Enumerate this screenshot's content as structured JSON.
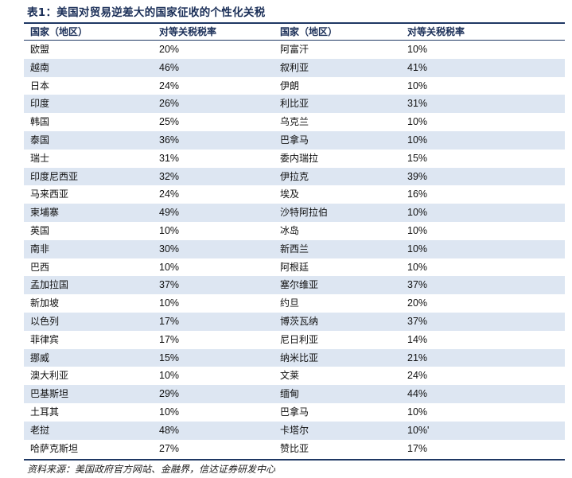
{
  "title": "表1：美国对贸易逆差大的国家征收的个性化关税",
  "headers": [
    "国家（地区）",
    "对等关税税率",
    "国家（地区）",
    "对等关税税率"
  ],
  "rows": [
    [
      "欧盟",
      "20%",
      "阿富汗",
      "10%"
    ],
    [
      "越南",
      "46%",
      "叙利亚",
      "41%"
    ],
    [
      "日本",
      "24%",
      "伊朗",
      "10%"
    ],
    [
      "印度",
      "26%",
      "利比亚",
      "31%"
    ],
    [
      "韩国",
      "25%",
      "乌克兰",
      "10%"
    ],
    [
      "泰国",
      "36%",
      "巴拿马",
      "10%"
    ],
    [
      "瑞士",
      "31%",
      "委内瑞拉",
      "15%"
    ],
    [
      "印度尼西亚",
      "32%",
      "伊拉克",
      "39%"
    ],
    [
      "马来西亚",
      "24%",
      "埃及",
      "16%"
    ],
    [
      "柬埔寨",
      "49%",
      "沙特阿拉伯",
      "10%"
    ],
    [
      "英国",
      "10%",
      "冰岛",
      "10%"
    ],
    [
      "南非",
      "30%",
      "新西兰",
      "10%"
    ],
    [
      "巴西",
      "10%",
      "阿根廷",
      "10%"
    ],
    [
      "孟加拉国",
      "37%",
      "塞尔维亚",
      "37%"
    ],
    [
      "新加坡",
      "10%",
      "约旦",
      "20%"
    ],
    [
      "以色列",
      "17%",
      "博茨瓦纳",
      "37%"
    ],
    [
      "菲律宾",
      "17%",
      "尼日利亚",
      "14%"
    ],
    [
      "挪威",
      "15%",
      "纳米比亚",
      "21%"
    ],
    [
      "澳大利亚",
      "10%",
      "文莱",
      "24%"
    ],
    [
      "巴基斯坦",
      "29%",
      "缅甸",
      "44%"
    ],
    [
      "土耳其",
      "10%",
      "巴拿马",
      "10%"
    ],
    [
      "老挝",
      "48%",
      "卡塔尔",
      "10%'"
    ],
    [
      "哈萨克斯坦",
      "27%",
      "赞比亚",
      "17%"
    ]
  ],
  "source": "资料来源：美国政府官方网站、金融界，信达证券研发中心",
  "colors": {
    "accent": "#1f3864",
    "stripe": "#dde6f2"
  }
}
